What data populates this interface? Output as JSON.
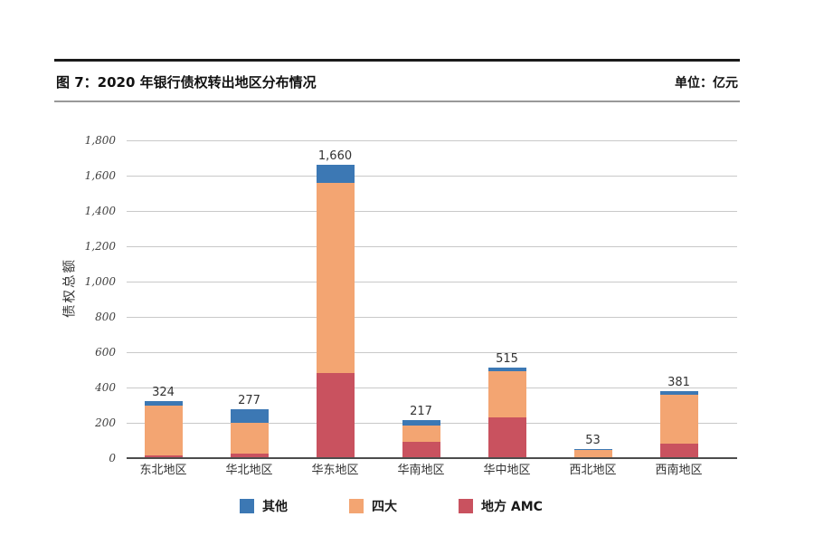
{
  "header": {
    "title": "图 7：2020 年银行债权转出地区分布情况",
    "unit": "单位：亿元"
  },
  "chart_data": {
    "type": "bar",
    "stacked": true,
    "title": "图 7：2020 年银行债权转出地区分布情况",
    "unit": "亿元",
    "categories": [
      "东北地区",
      "华北地区",
      "华东地区",
      "华南地区",
      "华中地区",
      "西北地区",
      "西南地区"
    ],
    "series": [
      {
        "name": "地方 AMC",
        "key": "local-amc",
        "color": "#C9525F",
        "values": [
          15,
          25,
          480,
          90,
          230,
          0,
          80
        ]
      },
      {
        "name": "四大",
        "key": "big-four",
        "color": "#F3A572",
        "values": [
          280,
          175,
          1080,
          95,
          260,
          45,
          281
        ]
      },
      {
        "name": "其他",
        "key": "other",
        "color": "#3C78B4",
        "values": [
          29,
          77,
          100,
          32,
          25,
          8,
          20
        ]
      }
    ],
    "totals": [
      324,
      277,
      1660,
      217,
      515,
      53,
      381
    ],
    "total_labels": [
      "324",
      "277",
      "1,660",
      "217",
      "515",
      "53",
      "381"
    ],
    "ylabel": "债权总额",
    "xlabel": "",
    "ylim": [
      0,
      1800
    ],
    "ytick_step": 200,
    "y_tick_labels": [
      "0",
      "200",
      "400",
      "600",
      "800",
      "1,000",
      "1,200",
      "1,400",
      "1,600",
      "1,800"
    ],
    "grid": true,
    "legend_position": "bottom",
    "legend": [
      {
        "label": "其他",
        "key": "other",
        "color": "#3C78B4"
      },
      {
        "label": "四大",
        "key": "big-four",
        "color": "#F3A572"
      },
      {
        "label": "地方 AMC",
        "key": "local-amc",
        "color": "#C9525F"
      }
    ],
    "colors": {
      "gridline": "#C9C9C9",
      "axis_line": "#4D4D4D",
      "tick_text": "#404040",
      "label_text": "#333333"
    }
  }
}
